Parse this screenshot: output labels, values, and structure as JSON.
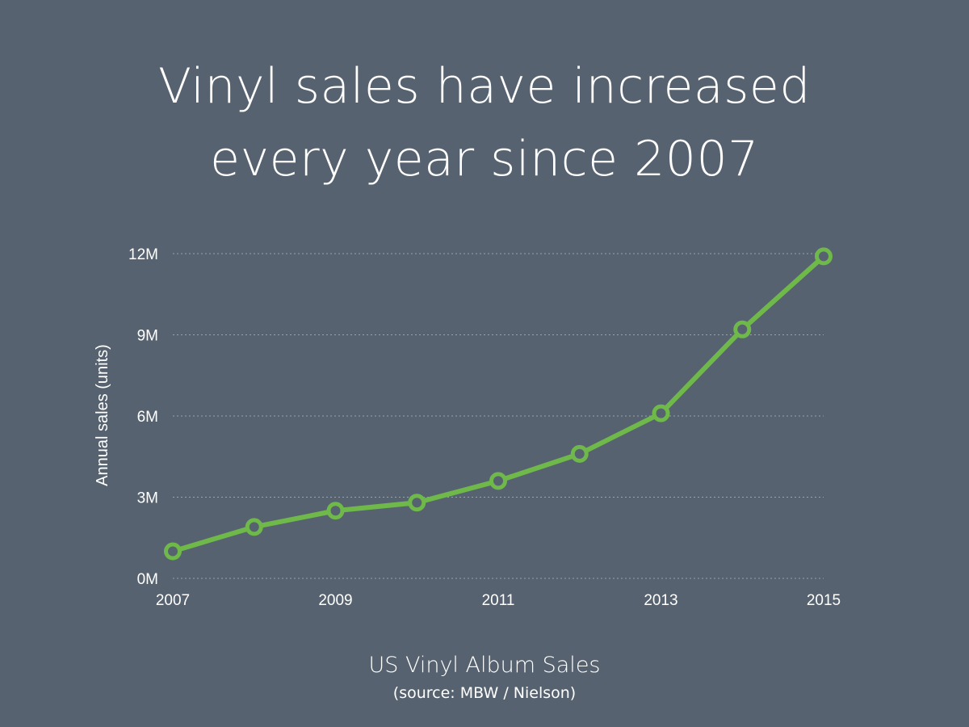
{
  "chart_data": {
    "type": "line",
    "title_lines": [
      "Vinyl sales have increased",
      "every year since 2007"
    ],
    "caption": "US Vinyl Album Sales",
    "source": "(source: MBW / Nielson)",
    "ylabel": "Annual sales (units)",
    "xlabel": "",
    "x": [
      2007,
      2008,
      2009,
      2010,
      2011,
      2012,
      2013,
      2014,
      2015
    ],
    "values": [
      1.0,
      1.9,
      2.5,
      2.8,
      3.6,
      4.6,
      6.1,
      9.2,
      11.9
    ],
    "value_unit": "M",
    "xlim": [
      2007,
      2015
    ],
    "ylim": [
      0,
      12
    ],
    "x_ticks": [
      "2007",
      "2009",
      "2011",
      "2013",
      "2015"
    ],
    "x_tick_values": [
      2007,
      2009,
      2011,
      2013,
      2015
    ],
    "y_ticks": [
      "0M",
      "3M",
      "6M",
      "9M",
      "12M"
    ],
    "y_tick_values": [
      0,
      3,
      6,
      9,
      12
    ],
    "grid": true,
    "legend": "none",
    "line_color": "#6fb84a",
    "marker_fill": "#56626f"
  }
}
